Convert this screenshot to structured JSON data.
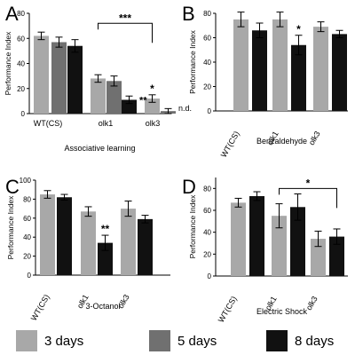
{
  "colors": {
    "d3": "#a8a8a8",
    "d5": "#707070",
    "d8": "#111111"
  },
  "legend": [
    {
      "label": "3 days",
      "key": "d3"
    },
    {
      "label": "5 days",
      "key": "d5"
    },
    {
      "label": "8 days",
      "key": "d8"
    }
  ],
  "chart_data": [
    {
      "panel": "A",
      "type": "bar",
      "xlabel": "Associative learning",
      "ylabel": "Performance Index",
      "ylim": [
        0,
        80
      ],
      "yticks": [
        0,
        20,
        40,
        60,
        80
      ],
      "categories": [
        "WT(CS)",
        "olk1",
        "olk3"
      ],
      "series": [
        {
          "name": "3 days",
          "values": [
            62,
            28,
            12
          ],
          "errors": [
            3,
            3,
            3
          ]
        },
        {
          "name": "5 days",
          "values": [
            57,
            26,
            2
          ],
          "errors": [
            4,
            4,
            2
          ]
        },
        {
          "name": "8 days",
          "values": [
            54,
            11,
            null
          ],
          "errors": [
            5,
            3,
            null
          ]
        }
      ],
      "annotations": [
        {
          "text": "**",
          "category": 1,
          "series": 2
        },
        {
          "text": "*",
          "category": 2,
          "series": 0
        },
        {
          "text": "n.d.",
          "category": 2,
          "series": 2
        }
      ],
      "bracket": {
        "text": "***",
        "from": [
          1,
          0
        ],
        "to": [
          2,
          0
        ],
        "y": 72
      }
    },
    {
      "panel": "B",
      "type": "bar",
      "xlabel": "Benzaldehyde",
      "ylabel": "Performance Index",
      "ylim": [
        0,
        80
      ],
      "yticks": [
        0,
        20,
        40,
        60,
        80
      ],
      "categories": [
        "WT(CS)",
        "olk1",
        "olk3"
      ],
      "series": [
        {
          "name": "3 days",
          "values": [
            75,
            75,
            69
          ],
          "errors": [
            6,
            6,
            4
          ]
        },
        {
          "name": "8 days",
          "values": [
            66,
            54,
            63
          ],
          "errors": [
            6,
            8,
            3
          ]
        }
      ],
      "annotations": [
        {
          "text": "*",
          "category": 1,
          "series": 1
        }
      ]
    },
    {
      "panel": "C",
      "type": "bar",
      "xlabel": "3-Octanol",
      "ylabel": "Performance Index",
      "ylim": [
        0,
        100
      ],
      "yticks": [
        0,
        20,
        40,
        60,
        80,
        100
      ],
      "categories": [
        "WT(CS)",
        "olk1",
        "olk3"
      ],
      "series": [
        {
          "name": "3 days",
          "values": [
            85,
            67,
            70
          ],
          "errors": [
            4,
            5,
            8
          ]
        },
        {
          "name": "8 days",
          "values": [
            82,
            34,
            59
          ],
          "errors": [
            3,
            8,
            4
          ]
        }
      ],
      "annotations": [
        {
          "text": "**",
          "category": 1,
          "series": 1
        }
      ]
    },
    {
      "panel": "D",
      "type": "bar",
      "xlabel": "Electric Shock",
      "ylabel": "Performance Index",
      "ylim": [
        0,
        90
      ],
      "yticks": [
        0,
        20,
        40,
        60,
        80
      ],
      "categories": [
        "WT(CS)",
        "olk1",
        "olk3"
      ],
      "series": [
        {
          "name": "3 days",
          "values": [
            67,
            55,
            34
          ],
          "errors": [
            4,
            11,
            7
          ]
        },
        {
          "name": "8 days",
          "values": [
            73,
            63,
            36
          ],
          "errors": [
            4,
            12,
            7
          ]
        }
      ],
      "annotations": [],
      "bracket": {
        "text": "*",
        "from": [
          1,
          0
        ],
        "to": [
          2,
          1
        ],
        "y": 80
      }
    }
  ]
}
